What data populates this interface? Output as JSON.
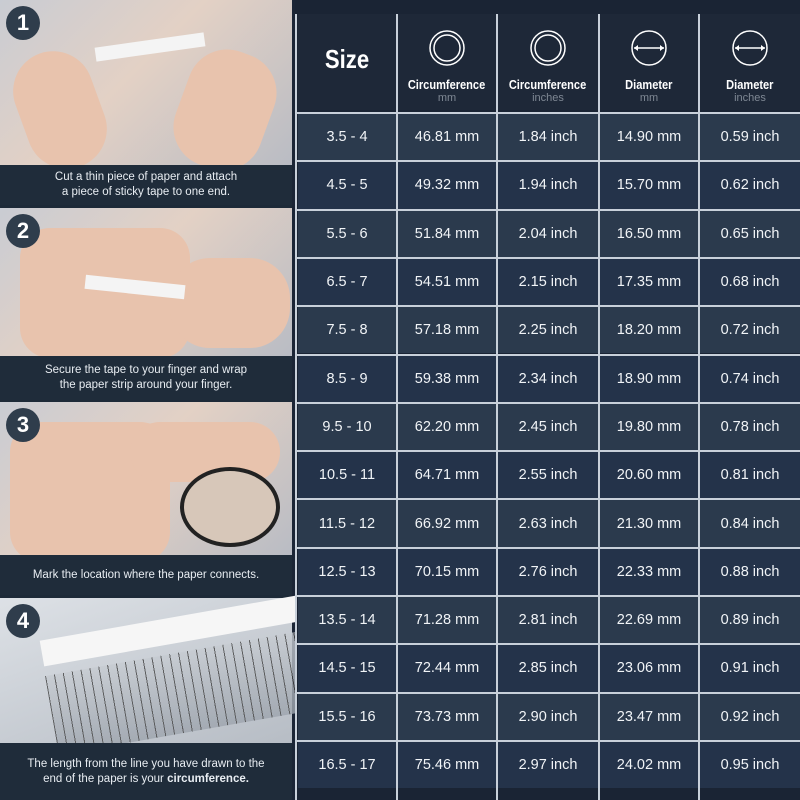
{
  "steps": [
    {
      "number": "1",
      "caption_line1": "Cut a thin piece of paper and attach",
      "caption_line2": "a piece of sticky tape to one end."
    },
    {
      "number": "2",
      "caption_line1": "Secure the tape to your finger and wrap",
      "caption_line2": "the paper strip around your finger."
    },
    {
      "number": "3",
      "caption_line1": "Mark the location where the paper connects.",
      "caption_line2": ""
    },
    {
      "number": "4",
      "caption_line1": "The length from the line you have drawn to the",
      "caption_line2": "end of the paper is your",
      "caption_bold": "circumference."
    }
  ],
  "table": {
    "headers": [
      {
        "title": "Size",
        "unit": "",
        "icon": ""
      },
      {
        "title": "Circumference",
        "unit": "mm",
        "icon": "ring-icon"
      },
      {
        "title": "Circumference",
        "unit": "inches",
        "icon": "ring-icon"
      },
      {
        "title": "Diameter",
        "unit": "mm",
        "icon": "diameter-icon"
      },
      {
        "title": "Diameter",
        "unit": "inches",
        "icon": "diameter-icon"
      }
    ],
    "rows": [
      [
        "3.5 - 4",
        "46.81 mm",
        "1.84 inch",
        "14.90 mm",
        "0.59 inch"
      ],
      [
        "4.5 - 5",
        "49.32 mm",
        "1.94 inch",
        "15.70 mm",
        "0.62 inch"
      ],
      [
        "5.5 - 6",
        "51.84 mm",
        "2.04 inch",
        "16.50 mm",
        "0.65 inch"
      ],
      [
        "6.5 - 7",
        "54.51 mm",
        "2.15 inch",
        "17.35 mm",
        "0.68 inch"
      ],
      [
        "7.5 - 8",
        "57.18 mm",
        "2.25 inch",
        "18.20 mm",
        "0.72 inch"
      ],
      [
        "8.5 - 9",
        "59.38 mm",
        "2.34 inch",
        "18.90 mm",
        "0.74 inch"
      ],
      [
        "9.5 - 10",
        "62.20 mm",
        "2.45 inch",
        "19.80 mm",
        "0.78 inch"
      ],
      [
        "10.5 - 11",
        "64.71 mm",
        "2.55 inch",
        "20.60 mm",
        "0.81 inch"
      ],
      [
        "11.5 - 12",
        "66.92 mm",
        "2.63 inch",
        "21.30 mm",
        "0.84 inch"
      ],
      [
        "12.5 - 13",
        "70.15 mm",
        "2.76 inch",
        "22.33 mm",
        "0.88 inch"
      ],
      [
        "13.5 - 14",
        "71.28 mm",
        "2.81 inch",
        "22.69 mm",
        "0.89 inch"
      ],
      [
        "14.5 - 15",
        "72.44 mm",
        "2.85 inch",
        "23.06 mm",
        "0.91 inch"
      ],
      [
        "15.5 - 16",
        "73.73 mm",
        "2.90 inch",
        "23.47 mm",
        "0.92 inch"
      ],
      [
        "16.5 - 17",
        "75.46 mm",
        "2.97 inch",
        "24.02 mm",
        "0.95 inch"
      ]
    ]
  }
}
